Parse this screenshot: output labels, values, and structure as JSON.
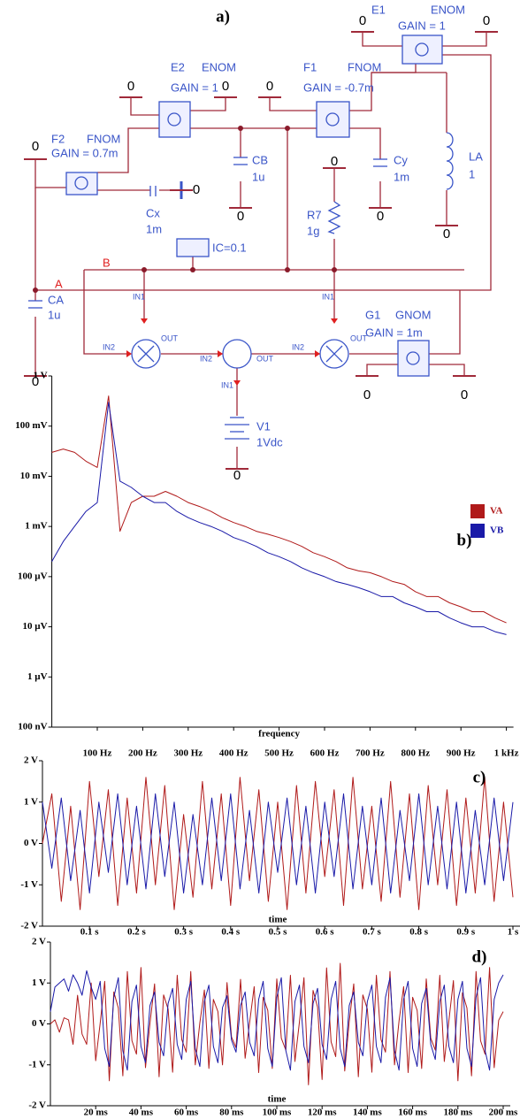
{
  "diagram": {
    "labels": [
      "a)",
      "E1",
      "ENOM",
      "GAIN = 1",
      "0",
      "0",
      "E2",
      "ENOM",
      "GAIN = 1",
      "0",
      "0",
      "F1",
      "FNOM",
      "GAIN = -0.7m",
      "0",
      "F2",
      "FNOM",
      "GAIN = 0.7m",
      "0",
      "CB",
      "1u",
      "0",
      "Cy",
      "1m",
      "0",
      "LA",
      "1",
      "0",
      "0",
      "R7",
      "1g",
      "Cx",
      "1m",
      "0",
      "IC=0.1",
      "B",
      "A",
      "CA",
      "1u",
      "0",
      "G1",
      "GNOM",
      "GAIN = 1m",
      "0",
      "0",
      "V1",
      "1Vdc",
      "0",
      "IN1",
      "IN2",
      "OUT",
      "IN1",
      "IN2",
      "OUT",
      "IN1",
      "IN2",
      "OUT"
    ]
  },
  "chart_data": [
    {
      "type": "line",
      "title": "b)",
      "x_label": "frequency",
      "log_y": true,
      "legend": "right",
      "x": [
        0,
        25,
        50,
        75,
        100,
        125,
        150,
        175,
        200,
        225,
        250,
        275,
        300,
        325,
        350,
        375,
        400,
        425,
        450,
        475,
        500,
        525,
        550,
        575,
        600,
        625,
        650,
        675,
        700,
        725,
        750,
        775,
        800,
        825,
        850,
        875,
        900,
        925,
        950,
        975,
        1000
      ],
      "series": [
        {
          "name": "VA",
          "color": "#b01a1a",
          "values": [
            0.03,
            0.035,
            0.03,
            0.02,
            0.015,
            0.4,
            0.0008,
            0.003,
            0.004,
            0.004,
            0.005,
            0.004,
            0.003,
            0.0025,
            0.002,
            0.0015,
            0.0012,
            0.001,
            0.0008,
            0.0007,
            0.0006,
            0.0005,
            0.0004,
            0.0003,
            0.00025,
            0.0002,
            0.00015,
            0.00013,
            0.00012,
            0.0001,
            8e-05,
            7e-05,
            5e-05,
            4e-05,
            4e-05,
            3e-05,
            2.5e-05,
            2e-05,
            2e-05,
            1.5e-05,
            1.2e-05
          ]
        },
        {
          "name": "VB",
          "color": "#1a1aa8",
          "values": [
            0.0002,
            0.0005,
            0.001,
            0.002,
            0.003,
            0.3,
            0.008,
            0.006,
            0.004,
            0.003,
            0.003,
            0.002,
            0.0015,
            0.0012,
            0.001,
            0.0008,
            0.0006,
            0.0005,
            0.0004,
            0.0003,
            0.00025,
            0.0002,
            0.00015,
            0.00012,
            0.0001,
            8e-05,
            7e-05,
            6e-05,
            5e-05,
            4e-05,
            4e-05,
            3e-05,
            2.5e-05,
            2e-05,
            2e-05,
            1.5e-05,
            1.2e-05,
            1e-05,
            1e-05,
            8e-06,
            7e-06
          ]
        }
      ],
      "xlim": [
        0,
        1000
      ],
      "xticks": [
        {
          "value": 100,
          "label": "100 Hz"
        },
        {
          "value": 200,
          "label": "200 Hz"
        },
        {
          "value": 300,
          "label": "300 Hz"
        },
        {
          "value": 400,
          "label": "400 Hz"
        },
        {
          "value": 500,
          "label": "500 Hz"
        },
        {
          "value": 600,
          "label": "600 Hz"
        },
        {
          "value": 700,
          "label": "700 Hz"
        },
        {
          "value": 800,
          "label": "800 Hz"
        },
        {
          "value": 900,
          "label": "900 Hz"
        },
        {
          "value": 1000,
          "label": "1 kHz"
        }
      ],
      "ylim": [
        1e-07,
        1
      ],
      "yticks": [
        {
          "value": 1,
          "label": "1 V"
        },
        {
          "value": 0.1,
          "label": "100 mV"
        },
        {
          "value": 0.01,
          "label": "10 mV"
        },
        {
          "value": 0.001,
          "label": "1 mV"
        },
        {
          "value": 0.0001,
          "label": "100 µV"
        },
        {
          "value": 1e-05,
          "label": "10 µV"
        },
        {
          "value": 1e-06,
          "label": "1 µV"
        },
        {
          "value": 1e-07,
          "label": "100 nV"
        }
      ]
    },
    {
      "type": "line",
      "title": "c)",
      "x_label": "time",
      "x": [
        0,
        0.02,
        0.04,
        0.06,
        0.08,
        0.1,
        0.12,
        0.14,
        0.16,
        0.18,
        0.2,
        0.22,
        0.24,
        0.26,
        0.28,
        0.3,
        0.32,
        0.34,
        0.36,
        0.38,
        0.4,
        0.42,
        0.44,
        0.46,
        0.48,
        0.5,
        0.52,
        0.54,
        0.56,
        0.58,
        0.6,
        0.62,
        0.64,
        0.66,
        0.68,
        0.7,
        0.72,
        0.74,
        0.76,
        0.78,
        0.8,
        0.82,
        0.84,
        0.86,
        0.88,
        0.9,
        0.92,
        0.94,
        0.96,
        0.98,
        1
      ],
      "series": [
        {
          "color": "#b01a1a",
          "values": [
            0,
            1.2,
            -1.4,
            0.9,
            -1.6,
            1.5,
            -0.8,
            1.3,
            -1.5,
            1.1,
            -1.2,
            1.6,
            -1.0,
            1.4,
            -1.6,
            0.7,
            -1.3,
            1.5,
            -1.1,
            1.2,
            -1.5,
            1.6,
            -0.9,
            1.3,
            -1.4,
            1.0,
            -1.6,
            1.4,
            -1.2,
            1.5,
            -0.8,
            1.3,
            -1.5,
            1.6,
            -1.1,
            0.9,
            -1.4,
            1.5,
            -1.3,
            1.2,
            -1.6,
            1.4,
            -1.0,
            1.3,
            -1.5,
            1.1,
            -1.2,
            1.6,
            -1.4,
            1.0,
            -1.3
          ]
        },
        {
          "color": "#1a1aa8",
          "values": [
            1.0,
            -0.6,
            1.1,
            -0.9,
            0.8,
            -1.2,
            1.0,
            -0.7,
            1.2,
            -1.0,
            0.9,
            -1.1,
            1.2,
            -0.8,
            1.0,
            -1.2,
            0.7,
            -1.0,
            1.1,
            -0.9,
            1.2,
            -1.1,
            0.8,
            -1.2,
            1.0,
            -0.7,
            1.1,
            -1.0,
            0.9,
            -1.2,
            1.0,
            -0.8,
            1.2,
            -1.1,
            0.9,
            -1.0,
            1.1,
            -1.2,
            0.8,
            -0.9,
            1.2,
            -1.0,
            0.9,
            -1.1,
            1.0,
            -1.2,
            0.8,
            -1.0,
            1.1,
            -0.9,
            1.0
          ]
        }
      ],
      "xlim": [
        0,
        1
      ],
      "xticks": [
        {
          "value": 0.1,
          "label": "0.1 s"
        },
        {
          "value": 0.2,
          "label": "0.2 s"
        },
        {
          "value": 0.3,
          "label": "0.3 s"
        },
        {
          "value": 0.4,
          "label": "0.4 s"
        },
        {
          "value": 0.5,
          "label": "0.5 s"
        },
        {
          "value": 0.6,
          "label": "0.6 s"
        },
        {
          "value": 0.7,
          "label": "0.7 s"
        },
        {
          "value": 0.8,
          "label": "0.8 s"
        },
        {
          "value": 0.9,
          "label": "0.9 s"
        },
        {
          "value": 1,
          "label": "1 s"
        }
      ],
      "ylim": [
        -2,
        2
      ],
      "yticks": [
        {
          "value": 2,
          "label": "2 V"
        },
        {
          "value": 1,
          "label": "1 V"
        },
        {
          "value": 0,
          "label": "0 V"
        },
        {
          "value": -1,
          "label": "-1 V"
        },
        {
          "value": -2,
          "label": "-2 V"
        }
      ]
    },
    {
      "type": "line",
      "title": "d)",
      "x_label": "time",
      "x": [
        0,
        2,
        4,
        6,
        8,
        10,
        12,
        14,
        16,
        18,
        20,
        22,
        24,
        26,
        28,
        30,
        32,
        34,
        36,
        38,
        40,
        42,
        44,
        46,
        48,
        50,
        52,
        54,
        56,
        58,
        60,
        62,
        64,
        66,
        68,
        70,
        72,
        74,
        76,
        78,
        80,
        82,
        84,
        86,
        88,
        90,
        92,
        94,
        96,
        98,
        100,
        102,
        104,
        106,
        108,
        110,
        112,
        114,
        116,
        118,
        120,
        122,
        124,
        126,
        128,
        130,
        132,
        134,
        136,
        138,
        140,
        142,
        144,
        146,
        148,
        150,
        152,
        154,
        156,
        158,
        160,
        162,
        164,
        166,
        168,
        170,
        172,
        174,
        176,
        178,
        180,
        182,
        184,
        186,
        188,
        190,
        192,
        194,
        196,
        198,
        200
      ],
      "series": [
        {
          "color": "#b01a1a",
          "values": [
            0,
            0.1,
            -0.2,
            0.15,
            0.1,
            -0.5,
            0.7,
            -0.25,
            -0.5,
            1.0,
            -0.9,
            0.02,
            1.04,
            -1.39,
            0.78,
            0.39,
            -1.27,
            1.28,
            -0.41,
            -0.74,
            1.38,
            -1.07,
            0.02,
            0.98,
            -1.29,
            0.71,
            0.36,
            -1.18,
            1.19,
            -0.38,
            -0.69,
            1.28,
            -1.0,
            0.03,
            0.83,
            -1.09,
            0.6,
            0.3,
            -1.0,
            1.01,
            -0.32,
            -0.58,
            1.09,
            -0.84,
            0.04,
            0.91,
            -1.19,
            0.65,
            0.33,
            -1.09,
            1.1,
            -0.35,
            -0.64,
            1.19,
            -0.92,
            0.05,
            1.13,
            -1.49,
            0.82,
            0.41,
            -1.36,
            1.37,
            -0.44,
            -0.8,
            1.48,
            -1.15,
            0.06,
            0.98,
            -1.29,
            0.71,
            0.36,
            -1.18,
            1.19,
            -0.38,
            -0.69,
            1.28,
            -1.0,
            0.07,
            0.91,
            -1.19,
            0.65,
            0.33,
            -1.09,
            1.1,
            -0.35,
            -0.64,
            1.19,
            -0.92,
            0.08,
            1.06,
            -1.39,
            0.76,
            0.39,
            -1.27,
            1.28,
            -0.41,
            -0.74,
            1.38,
            -1.07,
            0.09,
            0.3
          ]
        },
        {
          "color": "#1a1aa8",
          "values": [
            0.3,
            0.9,
            1.0,
            1.1,
            0.8,
            1.2,
            1.0,
            0.7,
            1.3,
            0.9,
            0.6,
            1.04,
            -0.6,
            -1.04,
            0.65,
            1.13,
            -0.65,
            -1.13,
            0.55,
            0.95,
            -0.55,
            -0.95,
            0.45,
            0.78,
            -0.45,
            -0.78,
            0.5,
            0.87,
            -0.5,
            -0.87,
            0.6,
            1.04,
            -0.6,
            -1.04,
            0.55,
            0.95,
            -0.55,
            -0.95,
            0.4,
            0.69,
            -0.4,
            -0.69,
            0.45,
            0.78,
            -0.45,
            -0.78,
            0.6,
            1.04,
            -0.6,
            -1.04,
            0.65,
            1.13,
            -0.65,
            -1.13,
            0.55,
            0.95,
            -0.55,
            -0.95,
            0.5,
            0.87,
            -0.5,
            -0.87,
            0.6,
            1.04,
            -0.6,
            -1.04,
            0.45,
            0.78,
            -0.45,
            -0.78,
            0.55,
            0.95,
            -0.55,
            -0.95,
            0.65,
            1.13,
            -0.65,
            -1.13,
            0.6,
            1.04,
            -0.6,
            -1.04,
            0.5,
            0.87,
            -0.5,
            -0.87,
            0.55,
            0.95,
            -0.55,
            -0.95,
            0.6,
            1.04,
            -0.6,
            -1.04,
            0.65,
            1.13,
            -0.65,
            -1.13,
            0.6,
            1.0,
            1.2
          ]
        }
      ],
      "xlim": [
        0,
        200
      ],
      "xticks": [
        {
          "value": 20,
          "label": "20 ms"
        },
        {
          "value": 40,
          "label": "40 ms"
        },
        {
          "value": 60,
          "label": "60 ms"
        },
        {
          "value": 80,
          "label": "80 ms"
        },
        {
          "value": 100,
          "label": "100 ms"
        },
        {
          "value": 120,
          "label": "120 ms"
        },
        {
          "value": 140,
          "label": "140 ms"
        },
        {
          "value": 160,
          "label": "160 ms"
        },
        {
          "value": 180,
          "label": "180 ms"
        },
        {
          "value": 200,
          "label": "200 ms"
        }
      ],
      "ylim": [
        -2,
        2
      ],
      "yticks": [
        {
          "value": 2,
          "label": "2 V"
        },
        {
          "value": 1,
          "label": "1 V"
        },
        {
          "value": 0,
          "label": "0 V"
        },
        {
          "value": -1,
          "label": "-1 V"
        },
        {
          "value": -2,
          "label": "-2 V"
        }
      ]
    }
  ]
}
